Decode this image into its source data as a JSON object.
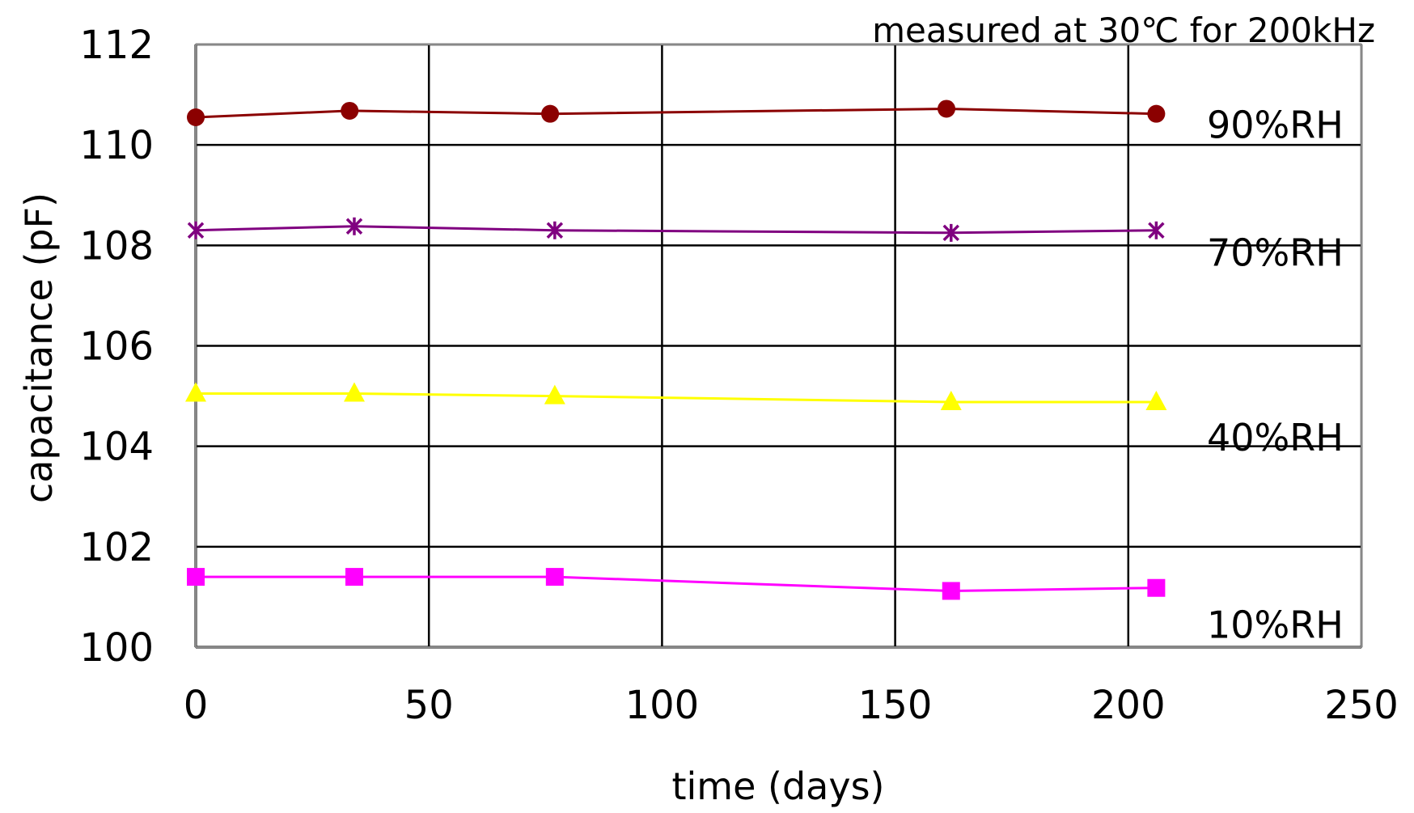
{
  "chart_data": {
    "type": "line",
    "title": "",
    "annotation": "measured at 30℃  for 200kHz",
    "xlabel": "time (days)",
    "ylabel": "capacitance (pF)",
    "xlim": [
      0,
      250
    ],
    "ylim": [
      100,
      112
    ],
    "xticks": [
      "0",
      "50",
      "100",
      "150",
      "200",
      "250"
    ],
    "yticks": [
      "100",
      "102",
      "104",
      "106",
      "108",
      "110",
      "112"
    ],
    "grid": true,
    "legend": "none",
    "series": [
      {
        "name": "90%RH",
        "color": "#8b0000",
        "marker": "circle",
        "x": [
          0,
          33,
          76,
          161,
          206
        ],
        "y": [
          110.55,
          110.68,
          110.62,
          110.72,
          110.62
        ]
      },
      {
        "name": "70%RH",
        "color": "#800080",
        "marker": "star",
        "x": [
          0,
          34,
          77,
          162,
          206
        ],
        "y": [
          108.3,
          108.38,
          108.3,
          108.25,
          108.3
        ]
      },
      {
        "name": "40%RH",
        "color": "#ffff00",
        "marker": "triangle",
        "x": [
          0,
          34,
          77,
          162,
          206
        ],
        "y": [
          105.05,
          105.05,
          105.0,
          104.88,
          104.88
        ]
      },
      {
        "name": "10%RH",
        "color": "#ff00ff",
        "marker": "square",
        "x": [
          0,
          34,
          77,
          162,
          206
        ],
        "y": [
          101.4,
          101.4,
          101.4,
          101.12,
          101.18
        ]
      }
    ]
  }
}
